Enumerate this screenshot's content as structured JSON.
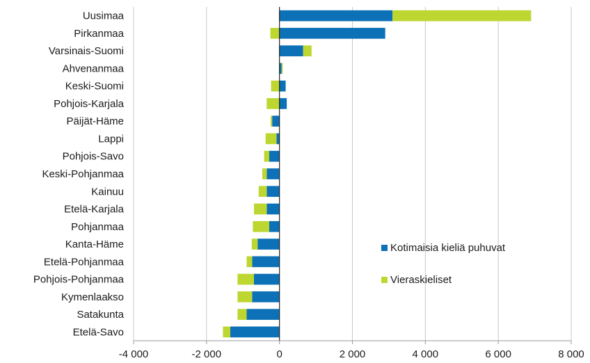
{
  "chart_data": {
    "type": "bar",
    "orientation": "horizontal",
    "stacked": true,
    "categories": [
      "Uusimaa",
      "Pirkanmaa",
      "Varsinais-Suomi",
      "Ahvenanmaa",
      "Keski-Suomi",
      "Pohjois-Karjala",
      "Päijät-Häme",
      "Lappi",
      "Pohjois-Savo",
      "Keski-Pohjanmaa",
      "Kainuu",
      "Etelä-Karjala",
      "Pohjanmaa",
      "Kanta-Häme",
      "Etelä-Pohjanmaa",
      "Pohjois-Pohjanmaa",
      "Kymenlaakso",
      "Satakunta",
      "Etelä-Savo"
    ],
    "series": [
      {
        "name": "Kotimaisia kieliä puhuvat",
        "color": "#0c71b7",
        "values": [
          3100,
          2900,
          650,
          60,
          170,
          200,
          -200,
          -80,
          -280,
          -350,
          -350,
          -350,
          -280,
          -600,
          -750,
          -700,
          -750,
          -900,
          -1350
        ]
      },
      {
        "name": "Vieraskieliset",
        "color": "#bed630",
        "values": [
          3800,
          -250,
          230,
          30,
          -230,
          -350,
          -40,
          -300,
          -140,
          -120,
          -220,
          -350,
          -450,
          -160,
          -150,
          -450,
          -400,
          -250,
          -200
        ]
      }
    ],
    "xlim": [
      -4000,
      8000
    ],
    "xticks": [
      -4000,
      -2000,
      0,
      2000,
      4000,
      6000,
      8000
    ],
    "xtick_labels": [
      "-4 000",
      "-2 000",
      "0",
      "2 000",
      "4 000",
      "6 000",
      "8 000"
    ],
    "grid": "vertical",
    "legend_position": "right-middle"
  }
}
